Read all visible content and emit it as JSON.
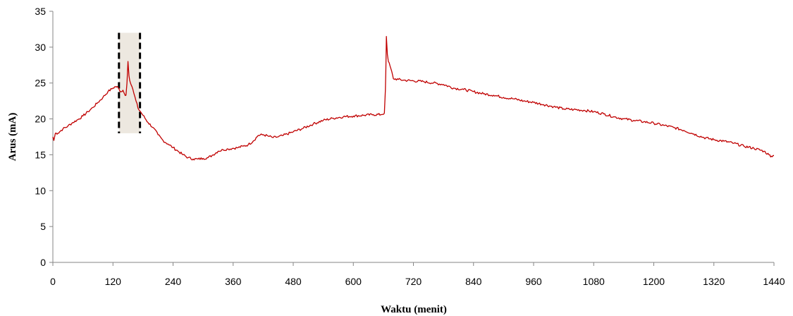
{
  "chart_data": {
    "type": "line",
    "title": "",
    "xlabel": "Waktu (menit)",
    "ylabel": "Arus (mA)",
    "xlim": [
      0,
      1440
    ],
    "ylim": [
      0,
      35
    ],
    "x_ticks": [
      "0",
      "120",
      "240",
      "360",
      "480",
      "600",
      "720",
      "840",
      "960",
      "1080",
      "1200",
      "1320",
      "1440"
    ],
    "y_ticks": [
      "0",
      "5",
      "10",
      "15",
      "20",
      "25",
      "30",
      "35"
    ],
    "grid": false,
    "legend": "none",
    "line_color": "#c00000",
    "highlight_region": {
      "x_start": 132,
      "x_end": 174,
      "y_start": 18,
      "y_end": 32,
      "fill": "#ede8e0",
      "border": "#000000"
    },
    "series": [
      {
        "values": [
          [
            0,
            17.5
          ],
          [
            2,
            17.0
          ],
          [
            5,
            18.0
          ],
          [
            10,
            18.0
          ],
          [
            15,
            18.3
          ],
          [
            20,
            18.6
          ],
          [
            30,
            19.0
          ],
          [
            40,
            19.5
          ],
          [
            50,
            19.9
          ],
          [
            60,
            20.4
          ],
          [
            70,
            21.0
          ],
          [
            80,
            21.6
          ],
          [
            90,
            22.3
          ],
          [
            100,
            23.0
          ],
          [
            110,
            23.8
          ],
          [
            120,
            24.3
          ],
          [
            125,
            24.5
          ],
          [
            130,
            24.4
          ],
          [
            133,
            24.0
          ],
          [
            136,
            23.8
          ],
          [
            140,
            24.0
          ],
          [
            143,
            23.5
          ],
          [
            146,
            23.3
          ],
          [
            148,
            25.0
          ],
          [
            150,
            28.0
          ],
          [
            152,
            26.0
          ],
          [
            155,
            25.0
          ],
          [
            158,
            24.5
          ],
          [
            162,
            23.5
          ],
          [
            166,
            22.5
          ],
          [
            170,
            21.5
          ],
          [
            175,
            21.0
          ],
          [
            180,
            20.5
          ],
          [
            190,
            19.5
          ],
          [
            200,
            18.8
          ],
          [
            210,
            17.8
          ],
          [
            220,
            17.0
          ],
          [
            230,
            16.5
          ],
          [
            240,
            16.0
          ],
          [
            250,
            15.5
          ],
          [
            260,
            15.0
          ],
          [
            270,
            14.6
          ],
          [
            280,
            14.4
          ],
          [
            290,
            14.4
          ],
          [
            300,
            14.5
          ],
          [
            310,
            14.6
          ],
          [
            320,
            15.0
          ],
          [
            330,
            15.5
          ],
          [
            340,
            15.7
          ],
          [
            350,
            15.8
          ],
          [
            360,
            15.9
          ],
          [
            370,
            16.0
          ],
          [
            380,
            16.2
          ],
          [
            390,
            16.4
          ],
          [
            400,
            16.9
          ],
          [
            410,
            17.7
          ],
          [
            420,
            17.8
          ],
          [
            430,
            17.6
          ],
          [
            440,
            17.4
          ],
          [
            450,
            17.5
          ],
          [
            460,
            17.7
          ],
          [
            480,
            18.2
          ],
          [
            500,
            18.7
          ],
          [
            520,
            19.3
          ],
          [
            540,
            19.8
          ],
          [
            560,
            20.1
          ],
          [
            580,
            20.3
          ],
          [
            600,
            20.4
          ],
          [
            620,
            20.5
          ],
          [
            640,
            20.6
          ],
          [
            655,
            20.6
          ],
          [
            662,
            20.8
          ],
          [
            664,
            24.0
          ],
          [
            665,
            27.0
          ],
          [
            666,
            31.5
          ],
          [
            668,
            29.0
          ],
          [
            670,
            28.0
          ],
          [
            675,
            27.0
          ],
          [
            680,
            25.6
          ],
          [
            690,
            25.5
          ],
          [
            700,
            25.4
          ],
          [
            720,
            25.3
          ],
          [
            740,
            25.2
          ],
          [
            760,
            25.0
          ],
          [
            780,
            24.8
          ],
          [
            800,
            24.3
          ],
          [
            820,
            24.1
          ],
          [
            840,
            23.8
          ],
          [
            860,
            23.5
          ],
          [
            880,
            23.3
          ],
          [
            900,
            23.0
          ],
          [
            920,
            22.8
          ],
          [
            940,
            22.5
          ],
          [
            960,
            22.3
          ],
          [
            980,
            22.0
          ],
          [
            1000,
            21.7
          ],
          [
            1020,
            21.4
          ],
          [
            1040,
            21.3
          ],
          [
            1060,
            21.2
          ],
          [
            1080,
            21.0
          ],
          [
            1100,
            20.7
          ],
          [
            1120,
            20.3
          ],
          [
            1140,
            20.0
          ],
          [
            1160,
            19.8
          ],
          [
            1180,
            19.6
          ],
          [
            1200,
            19.4
          ],
          [
            1220,
            19.1
          ],
          [
            1240,
            18.8
          ],
          [
            1260,
            18.4
          ],
          [
            1280,
            17.9
          ],
          [
            1300,
            17.4
          ],
          [
            1320,
            17.1
          ],
          [
            1340,
            16.9
          ],
          [
            1360,
            16.6
          ],
          [
            1380,
            16.2
          ],
          [
            1400,
            15.9
          ],
          [
            1420,
            15.5
          ],
          [
            1430,
            15.0
          ],
          [
            1435,
            14.8
          ],
          [
            1440,
            14.9
          ]
        ]
      }
    ]
  }
}
